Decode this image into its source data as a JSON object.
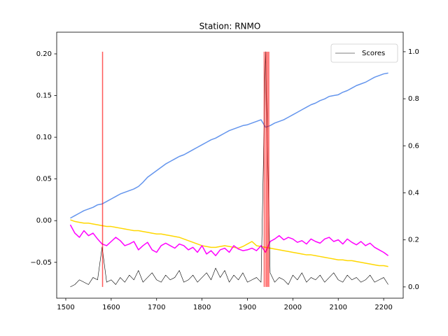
{
  "chart_data": {
    "type": "line",
    "title": "Station: RNMO",
    "x": [
      1510,
      1520,
      1530,
      1540,
      1550,
      1560,
      1570,
      1580,
      1590,
      1600,
      1610,
      1620,
      1630,
      1640,
      1650,
      1660,
      1670,
      1680,
      1690,
      1700,
      1710,
      1720,
      1730,
      1740,
      1750,
      1760,
      1770,
      1780,
      1790,
      1800,
      1810,
      1820,
      1830,
      1840,
      1850,
      1860,
      1870,
      1880,
      1890,
      1900,
      1910,
      1920,
      1930,
      1940,
      1950,
      1960,
      1970,
      1980,
      1990,
      2000,
      2010,
      2020,
      2030,
      2040,
      2050,
      2060,
      2070,
      2080,
      2090,
      2100,
      2110,
      2120,
      2130,
      2140,
      2150,
      2160,
      2170,
      2180,
      2190,
      2200,
      2210
    ],
    "series": [
      {
        "color": "#6495ed",
        "values": [
          0.003,
          0.006,
          0.009,
          0.012,
          0.014,
          0.016,
          0.019,
          0.02,
          0.023,
          0.026,
          0.029,
          0.032,
          0.034,
          0.036,
          0.038,
          0.041,
          0.046,
          0.052,
          0.056,
          0.06,
          0.064,
          0.068,
          0.071,
          0.074,
          0.077,
          0.079,
          0.082,
          0.085,
          0.088,
          0.091,
          0.094,
          0.097,
          0.099,
          0.102,
          0.105,
          0.108,
          0.11,
          0.112,
          0.114,
          0.115,
          0.117,
          0.119,
          0.121,
          0.112,
          0.114,
          0.117,
          0.119,
          0.121,
          0.124,
          0.127,
          0.13,
          0.133,
          0.136,
          0.139,
          0.141,
          0.144,
          0.146,
          0.149,
          0.15,
          0.151,
          0.154,
          0.156,
          0.159,
          0.162,
          0.164,
          0.166,
          0.169,
          0.172,
          0.174,
          0.176,
          0.177
        ]
      },
      {
        "color": "#ffd700",
        "values": [
          0.001,
          -0.001,
          -0.002,
          -0.003,
          -0.003,
          -0.004,
          -0.005,
          -0.006,
          -0.007,
          -0.007,
          -0.008,
          -0.009,
          -0.01,
          -0.011,
          -0.012,
          -0.012,
          -0.013,
          -0.014,
          -0.015,
          -0.016,
          -0.016,
          -0.017,
          -0.018,
          -0.019,
          -0.02,
          -0.022,
          -0.024,
          -0.026,
          -0.028,
          -0.03,
          -0.031,
          -0.032,
          -0.032,
          -0.031,
          -0.03,
          -0.031,
          -0.032,
          -0.033,
          -0.031,
          -0.028,
          -0.025,
          -0.03,
          -0.031,
          -0.032,
          -0.033,
          -0.034,
          -0.035,
          -0.036,
          -0.037,
          -0.038,
          -0.039,
          -0.04,
          -0.041,
          -0.041,
          -0.042,
          -0.043,
          -0.044,
          -0.045,
          -0.046,
          -0.047,
          -0.047,
          -0.048,
          -0.048,
          -0.049,
          -0.05,
          -0.051,
          -0.052,
          -0.053,
          -0.054,
          -0.054,
          -0.055
        ]
      },
      {
        "color": "#ff00ff",
        "values": [
          -0.005,
          -0.015,
          -0.02,
          -0.012,
          -0.018,
          -0.015,
          -0.022,
          -0.028,
          -0.03,
          -0.025,
          -0.02,
          -0.024,
          -0.03,
          -0.028,
          -0.025,
          -0.035,
          -0.03,
          -0.026,
          -0.035,
          -0.038,
          -0.03,
          -0.027,
          -0.03,
          -0.033,
          -0.028,
          -0.03,
          -0.035,
          -0.032,
          -0.038,
          -0.03,
          -0.04,
          -0.036,
          -0.042,
          -0.035,
          -0.033,
          -0.038,
          -0.03,
          -0.034,
          -0.036,
          -0.035,
          -0.033,
          -0.036,
          -0.03,
          -0.038,
          -0.025,
          -0.022,
          -0.018,
          -0.023,
          -0.02,
          -0.022,
          -0.026,
          -0.024,
          -0.028,
          -0.022,
          -0.025,
          -0.027,
          -0.022,
          -0.02,
          -0.025,
          -0.023,
          -0.028,
          -0.022,
          -0.026,
          -0.029,
          -0.025,
          -0.03,
          -0.027,
          -0.032,
          -0.035,
          -0.038,
          -0.042
        ]
      },
      {
        "name": "Scores",
        "color": "#000000",
        "axis": "y2",
        "values": [
          0.0,
          0.01,
          0.03,
          0.02,
          0.01,
          0.04,
          0.03,
          0.17,
          0.02,
          0.03,
          0.01,
          0.04,
          0.02,
          0.05,
          0.03,
          0.07,
          0.02,
          0.04,
          0.06,
          0.03,
          0.02,
          0.05,
          0.03,
          0.04,
          0.07,
          0.02,
          0.03,
          0.05,
          0.02,
          0.04,
          0.06,
          0.03,
          0.08,
          0.04,
          0.07,
          0.02,
          0.05,
          0.03,
          0.06,
          0.02,
          0.03,
          0.04,
          0.02,
          1.0,
          0.06,
          0.02,
          0.04,
          0.03,
          0.01,
          0.05,
          0.03,
          0.06,
          0.02,
          0.04,
          0.03,
          0.05,
          0.02,
          0.04,
          0.06,
          0.03,
          0.02,
          0.05,
          0.03,
          0.04,
          0.02,
          0.03,
          0.05,
          0.02,
          0.03,
          0.04,
          0.01
        ]
      }
    ],
    "vlines": {
      "x": [
        1581,
        1937,
        1941,
        1944,
        1947
      ],
      "y2": [
        0,
        1
      ],
      "color": "#ff0000"
    },
    "xlim": [
      1480,
      2243
    ],
    "xticks": [
      1500,
      1600,
      1700,
      1800,
      1900,
      2000,
      2100,
      2200
    ],
    "ylim": [
      -0.093,
      0.226
    ],
    "yticks": [
      {
        "value": -0.05,
        "label": "−0.05"
      },
      {
        "value": 0,
        "label": "0.00"
      },
      {
        "value": 0.05,
        "label": "0.05"
      },
      {
        "value": 0.1,
        "label": "0.10"
      },
      {
        "value": 0.15,
        "label": "0.15"
      },
      {
        "value": 0.2,
        "label": "0.20"
      }
    ],
    "y2lim": [
      -0.048,
      1.083
    ],
    "y2ticks": [
      {
        "value": 0,
        "label": "0.0"
      },
      {
        "value": 0.2,
        "label": "0.2"
      },
      {
        "value": 0.4,
        "label": "0.4"
      },
      {
        "value": 0.6,
        "label": "0.6"
      },
      {
        "value": 0.8,
        "label": "0.8"
      },
      {
        "value": 1,
        "label": "1.0"
      }
    ],
    "legend": "upper right"
  }
}
